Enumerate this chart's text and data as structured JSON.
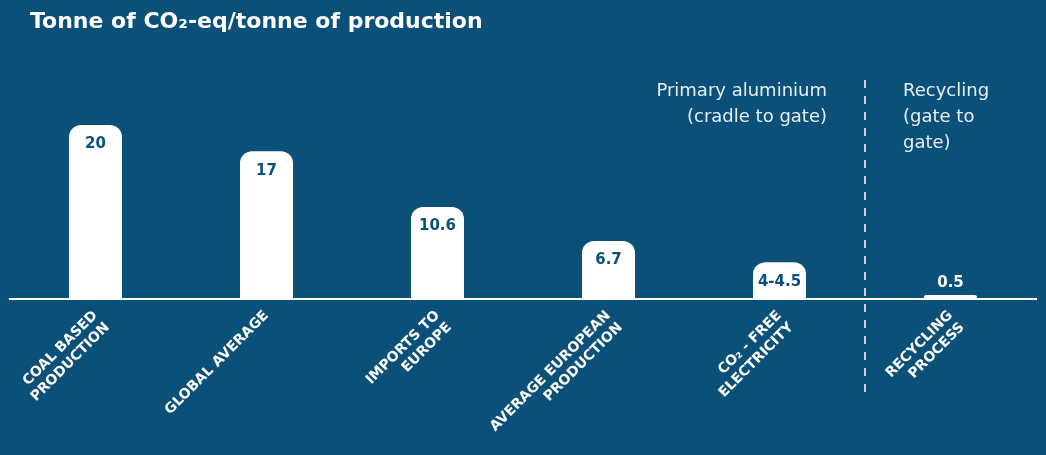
{
  "chart_data": {
    "type": "bar",
    "title": "Tonne of CO₂-eq/tonne of production",
    "categories": [
      "COAL BASED PRODUCTION",
      "GLOBAL AVERAGE",
      "IMPORTS TO EUROPE",
      "AVERAGE EUROPEAN PRODUCTION",
      "CO₂ - FREE ELECTRICITY",
      "RECYCLING PROCESS"
    ],
    "values": [
      20,
      17,
      10.6,
      6.7,
      4.25,
      0.5
    ],
    "value_labels": [
      "20",
      "17",
      "10.6",
      "6.7",
      "4-4.5",
      "0.5"
    ],
    "color": "#ffffff",
    "grid": false,
    "legend": false,
    "annotations": [
      "Primary aluminium (cradle to gate)",
      "Recycling (gate to gate)"
    ]
  }
}
